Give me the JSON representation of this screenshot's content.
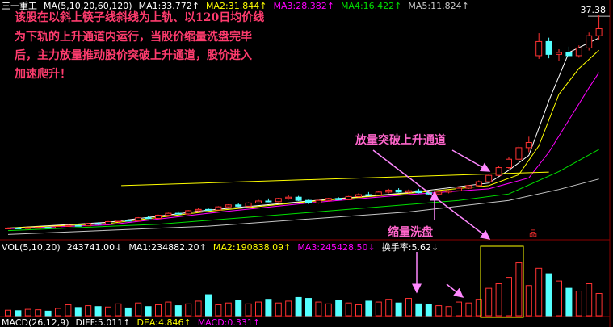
{
  "chart_data": {
    "type": "candlestick",
    "stock_name": "三一重工",
    "ma_label": "MA(5,10,20,60,120)",
    "ylim": [
      2.5,
      38.4
    ],
    "yticks": [
      37.38
    ],
    "up_color": "#ff3232",
    "down_color": "#54ffff",
    "candles": {
      "open": [
        4.1,
        4.2,
        4.15,
        4.25,
        4.3,
        4.2,
        4.45,
        4.6,
        4.55,
        4.9,
        4.8,
        5.2,
        5.4,
        5.3,
        5.8,
        5.7,
        6.2,
        6.5,
        6.4,
        6.9,
        7.1,
        7.0,
        7.5,
        7.8,
        7.6,
        8.1,
        8.4,
        8.3,
        8.8,
        9.0,
        8.5,
        8.1,
        8.5,
        8.8,
        8.6,
        9.1,
        9.4,
        9.3,
        9.8,
        10.1,
        9.8,
        10.0,
        9.7,
        9.5,
        9.8,
        10.0,
        10.4,
        10.8,
        11.4,
        12.4,
        13.6,
        14.9,
        16.7,
        31.0,
        33.2,
        31.2,
        31.5,
        31.0,
        32.2,
        34.1
      ],
      "high": [
        4.3,
        4.3,
        4.3,
        4.4,
        4.4,
        4.5,
        4.7,
        4.8,
        5.0,
        5.1,
        5.3,
        5.5,
        5.6,
        5.9,
        6.1,
        6.3,
        6.6,
        6.8,
        7.0,
        7.3,
        7.4,
        7.6,
        7.9,
        8.1,
        8.2,
        8.6,
        8.8,
        8.9,
        9.3,
        9.2,
        8.7,
        8.6,
        8.9,
        9.0,
        9.2,
        9.6,
        9.8,
        9.9,
        10.3,
        10.4,
        10.2,
        10.3,
        10.0,
        9.9,
        10.1,
        10.6,
        10.9,
        11.6,
        12.6,
        13.8,
        15.2,
        17.0,
        18.4,
        34.5,
        33.8,
        32.0,
        32.4,
        32.6,
        34.6,
        37.38
      ],
      "low": [
        4.0,
        4.1,
        4.1,
        4.2,
        4.15,
        4.2,
        4.4,
        4.5,
        4.5,
        4.7,
        4.8,
        5.1,
        5.2,
        5.3,
        5.6,
        5.7,
        6.0,
        6.3,
        6.3,
        6.8,
        6.9,
        7.0,
        7.3,
        7.5,
        7.6,
        8.0,
        8.2,
        8.2,
        8.6,
        8.4,
        7.9,
        8.0,
        8.3,
        8.5,
        8.6,
        9.0,
        9.2,
        9.3,
        9.6,
        9.7,
        9.6,
        9.6,
        9.3,
        9.4,
        9.6,
        9.9,
        10.3,
        10.7,
        11.3,
        12.3,
        13.4,
        14.6,
        16.0,
        30.5,
        30.6,
        30.2,
        30.8,
        30.7,
        31.8,
        33.5
      ],
      "close": [
        4.2,
        4.15,
        4.25,
        4.3,
        4.2,
        4.45,
        4.6,
        4.55,
        4.9,
        4.8,
        5.2,
        5.4,
        5.3,
        5.8,
        5.7,
        6.2,
        6.5,
        6.4,
        6.9,
        7.1,
        7.0,
        7.5,
        7.8,
        7.6,
        8.1,
        8.4,
        8.3,
        8.8,
        9.0,
        8.5,
        8.1,
        8.5,
        8.8,
        8.6,
        9.1,
        9.4,
        9.3,
        9.8,
        10.1,
        9.8,
        10.0,
        9.7,
        9.5,
        9.8,
        10.0,
        10.4,
        10.8,
        11.4,
        12.4,
        13.6,
        14.9,
        16.7,
        17.5,
        33.2,
        31.2,
        31.5,
        31.0,
        32.2,
        34.1,
        35.2
      ]
    },
    "ma_series": [
      {
        "name": "MA1:",
        "trend": "↑",
        "color": "#ffffff",
        "x": [
          0,
          10,
          20,
          30,
          40,
          48,
          50,
          52,
          54,
          56,
          59
        ],
        "values": [
          4.2,
          5.1,
          7.0,
          8.4,
          9.7,
          11.2,
          13.2,
          15.5,
          24,
          31.5,
          33.772
        ]
      },
      {
        "name": "MA2:",
        "trend": "↑",
        "color": "#ffff00",
        "x": [
          0,
          10,
          20,
          30,
          40,
          48,
          51,
          53,
          55,
          57,
          59
        ],
        "values": [
          4.2,
          4.9,
          6.8,
          8.3,
          9.6,
          10.8,
          12.5,
          17,
          25,
          29,
          31.844
        ]
      },
      {
        "name": "MA3:",
        "trend": "↑",
        "color": "#ff00ff",
        "x": [
          0,
          10,
          20,
          30,
          40,
          48,
          52,
          54,
          56,
          58,
          59
        ],
        "values": [
          4.1,
          4.7,
          6.5,
          8.1,
          9.4,
          10.3,
          12,
          16,
          21,
          26,
          28.382
        ]
      },
      {
        "name": "MA4:",
        "trend": "↑",
        "color": "#00e000",
        "x": [
          0,
          15,
          30,
          45,
          50,
          55,
          59
        ],
        "values": [
          3.8,
          4.8,
          6.6,
          8.5,
          9.5,
          13,
          16.422
        ]
      },
      {
        "name": "MA5:",
        "trend": "↑",
        "color": "#c8c8c8",
        "x": [
          0,
          20,
          40,
          50,
          55,
          59
        ],
        "values": [
          3.2,
          4.5,
          6.7,
          8.5,
          10.2,
          11.824
        ]
      }
    ],
    "channel_line": {
      "color": "#ffff00",
      "x": [
        11.3,
        54
      ],
      "values": [
        10.8,
        12.9
      ]
    },
    "volume": {
      "label": "VOL(5,10,20)",
      "ylim": [
        0,
        700000
      ],
      "values": [
        60000,
        55000,
        70000,
        65000,
        50000,
        80000,
        120000,
        90000,
        110000,
        100000,
        95000,
        130000,
        85000,
        140000,
        100000,
        120000,
        150000,
        110000,
        130000,
        160000,
        230000,
        120000,
        140000,
        170000,
        130000,
        150000,
        180000,
        140000,
        160000,
        200000,
        190000,
        150000,
        130000,
        170000,
        140000,
        120000,
        160000,
        150000,
        180000,
        140000,
        190000,
        130000,
        120000,
        110000,
        100000,
        150000,
        140000,
        180000,
        300000,
        350000,
        420000,
        580000,
        330000,
        520000,
        460000,
        380000,
        300000,
        270000,
        350000,
        243741
      ],
      "current": {
        "label": "243741.00",
        "trend": "↓"
      },
      "ma": [
        {
          "name": "MA1:",
          "value": 234882.2,
          "label": "234882.20",
          "trend": "↑",
          "color": "#ffffff"
        },
        {
          "name": "MA2:",
          "value": 190838.09,
          "label": "190838.09",
          "trend": "↑",
          "color": "#ffff00"
        },
        {
          "name": "MA3:",
          "value": 245428.5,
          "label": "245428.50",
          "trend": "↓",
          "color": "#ff00ff"
        }
      ],
      "turnover": {
        "name": "换手率:",
        "value": 5.62,
        "trend": "↓"
      }
    },
    "macd": {
      "label": "MACD(26,12,9)",
      "items": [
        {
          "name": "DIFF:",
          "value": 5.011,
          "trend": "↑",
          "color": "#ffffff"
        },
        {
          "name": "DEA:",
          "value": 4.846,
          "trend": "↑",
          "color": "#ffff00"
        },
        {
          "name": "MACD:",
          "value": 0.331,
          "trend": "↑",
          "color": "#ff00ff"
        }
      ]
    },
    "annotations": {
      "note": [
        "该股在以斜上筷子线斜线为上轨、以120日均价线",
        "为下轨的上升通道内运行，当股价缩量洗盘完毕",
        "后，主力放量推动股价突破上升通道，股价进入",
        "加速爬升！"
      ],
      "breakout": "放量突破上升通道",
      "washout": "缩量洗盘",
      "marker": "品"
    }
  }
}
